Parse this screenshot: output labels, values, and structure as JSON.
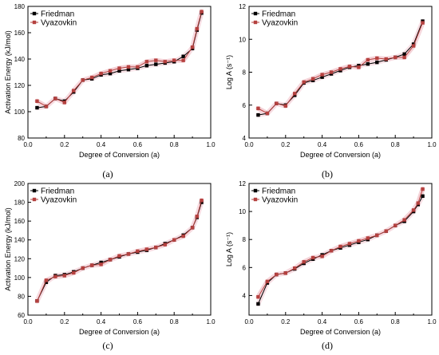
{
  "colors": {
    "friedman": "#000000",
    "vyazovkin": "#b5413f",
    "vyazovkin_band": "#f2c9cf",
    "friedman_band": "#f7dde3"
  },
  "chart_data": [
    {
      "type": "line",
      "panel_label": "(a)",
      "xlabel": "Degree of Conversion (a)",
      "ylabel": "Activation Energy (kJ/mol)",
      "xlim": [
        0.0,
        1.0
      ],
      "ylim": [
        80,
        180
      ],
      "xticks": [
        0.0,
        0.2,
        0.4,
        0.6,
        0.8,
        1.0
      ],
      "xtick_labels": [
        "0.0",
        "0.2",
        "0.4",
        "0.6",
        "0.8",
        "1.0"
      ],
      "yticks": [
        80,
        100,
        120,
        140,
        160,
        180
      ],
      "ytick_labels": [
        "80",
        "100",
        "120",
        "140",
        "160",
        "180"
      ],
      "legend_position": "top-left",
      "grid": false,
      "x": [
        0.05,
        0.1,
        0.15,
        0.2,
        0.25,
        0.3,
        0.35,
        0.4,
        0.45,
        0.5,
        0.55,
        0.6,
        0.65,
        0.7,
        0.75,
        0.8,
        0.85,
        0.9,
        0.925,
        0.95
      ],
      "series": [
        {
          "name": "Friedman",
          "values": [
            103,
            104,
            110,
            108,
            115,
            124,
            125,
            128,
            129,
            131,
            132,
            133,
            135,
            136,
            137,
            138,
            142,
            148,
            162,
            175
          ]
        },
        {
          "name": "Vyazovkin",
          "values": [
            108,
            104,
            110,
            107,
            116,
            124,
            126,
            129,
            131,
            133,
            134,
            134,
            138,
            139,
            138,
            139,
            139,
            149,
            163,
            176
          ]
        }
      ]
    },
    {
      "type": "line",
      "panel_label": "(b)",
      "xlabel": "Degree of Conversion (a)",
      "ylabel": "Log A (s⁻¹)",
      "xlim": [
        0.0,
        1.0
      ],
      "ylim": [
        4,
        12
      ],
      "xticks": [
        0.0,
        0.2,
        0.4,
        0.6,
        0.8,
        1.0
      ],
      "xtick_labels": [
        "0.0",
        "0.2",
        "0.4",
        "0.6",
        "0.8",
        "1.0"
      ],
      "yticks": [
        4,
        6,
        8,
        10,
        12
      ],
      "ytick_labels": [
        "4",
        "6",
        "8",
        "10",
        "12"
      ],
      "legend_position": "top-left",
      "grid": false,
      "x": [
        0.05,
        0.1,
        0.15,
        0.2,
        0.25,
        0.3,
        0.35,
        0.4,
        0.45,
        0.5,
        0.55,
        0.6,
        0.65,
        0.7,
        0.75,
        0.8,
        0.85,
        0.9,
        0.95
      ],
      "series": [
        {
          "name": "Friedman",
          "values": [
            5.4,
            5.5,
            6.1,
            6.0,
            6.6,
            7.35,
            7.5,
            7.7,
            7.9,
            8.1,
            8.3,
            8.4,
            8.5,
            8.6,
            8.75,
            8.9,
            9.1,
            9.7,
            11.1
          ]
        },
        {
          "name": "Vyazovkin",
          "values": [
            5.8,
            5.5,
            6.1,
            5.95,
            6.7,
            7.4,
            7.6,
            7.85,
            8.0,
            8.2,
            8.35,
            8.3,
            8.75,
            8.85,
            8.8,
            8.9,
            8.9,
            9.6,
            11.0
          ]
        }
      ]
    },
    {
      "type": "line",
      "panel_label": "(c)",
      "xlabel": "Degree of Conversion (a)",
      "ylabel": "Activation Energy (kJ/mol)",
      "xlim": [
        0.0,
        1.0
      ],
      "ylim": [
        60,
        200
      ],
      "xticks": [
        0.0,
        0.2,
        0.4,
        0.6,
        0.8,
        1.0
      ],
      "xtick_labels": [
        "0.0",
        "0.2",
        "0.4",
        "0.6",
        "0.8",
        "1.0"
      ],
      "yticks": [
        60,
        80,
        100,
        120,
        140,
        160,
        180,
        200
      ],
      "ytick_labels": [
        "60",
        "80",
        "100",
        "120",
        "140",
        "160",
        "180",
        "200"
      ],
      "legend_position": "top-left",
      "grid": false,
      "x": [
        0.05,
        0.1,
        0.15,
        0.2,
        0.25,
        0.3,
        0.35,
        0.4,
        0.45,
        0.5,
        0.55,
        0.6,
        0.65,
        0.7,
        0.75,
        0.8,
        0.85,
        0.9,
        0.925,
        0.95
      ],
      "series": [
        {
          "name": "Friedman",
          "values": [
            75,
            95,
            102,
            103,
            106,
            110,
            113,
            116,
            119,
            122,
            125,
            127,
            129,
            132,
            136,
            140,
            145,
            153,
            164,
            180
          ]
        },
        {
          "name": "Vyazovkin",
          "values": [
            75,
            97,
            101,
            102,
            105,
            110,
            113,
            114,
            119,
            123,
            125,
            128,
            130,
            132,
            135,
            140,
            144,
            153,
            165,
            182
          ]
        }
      ]
    },
    {
      "type": "line",
      "panel_label": "(d)",
      "xlabel": "Degree of Conversion (a)",
      "ylabel": "Log A (s⁻¹)",
      "xlim": [
        0.0,
        1.0
      ],
      "ylim": [
        2.6,
        12
      ],
      "xticks": [
        0.0,
        0.2,
        0.4,
        0.6,
        0.8,
        1.0
      ],
      "xtick_labels": [
        "0.0",
        "0.2",
        "0.4",
        "0.6",
        "0.8",
        "1.0"
      ],
      "yticks": [
        4,
        6,
        8,
        10,
        12
      ],
      "ytick_labels": [
        "4",
        "6",
        "8",
        "10",
        "12"
      ],
      "legend_position": "top-left",
      "grid": false,
      "x": [
        0.05,
        0.1,
        0.15,
        0.2,
        0.25,
        0.3,
        0.35,
        0.4,
        0.45,
        0.5,
        0.55,
        0.6,
        0.65,
        0.7,
        0.75,
        0.8,
        0.85,
        0.9,
        0.925,
        0.95
      ],
      "series": [
        {
          "name": "Friedman",
          "values": [
            3.4,
            4.9,
            5.5,
            5.6,
            5.9,
            6.3,
            6.6,
            6.9,
            7.2,
            7.4,
            7.6,
            7.8,
            8.0,
            8.3,
            8.6,
            9.0,
            9.3,
            10.0,
            10.5,
            11.1
          ]
        },
        {
          "name": "Vyazovkin",
          "values": [
            3.9,
            5.0,
            5.5,
            5.6,
            5.95,
            6.4,
            6.7,
            6.8,
            7.2,
            7.5,
            7.7,
            7.9,
            8.1,
            8.3,
            8.6,
            9.0,
            9.4,
            10.1,
            10.6,
            11.6
          ]
        }
      ]
    }
  ]
}
